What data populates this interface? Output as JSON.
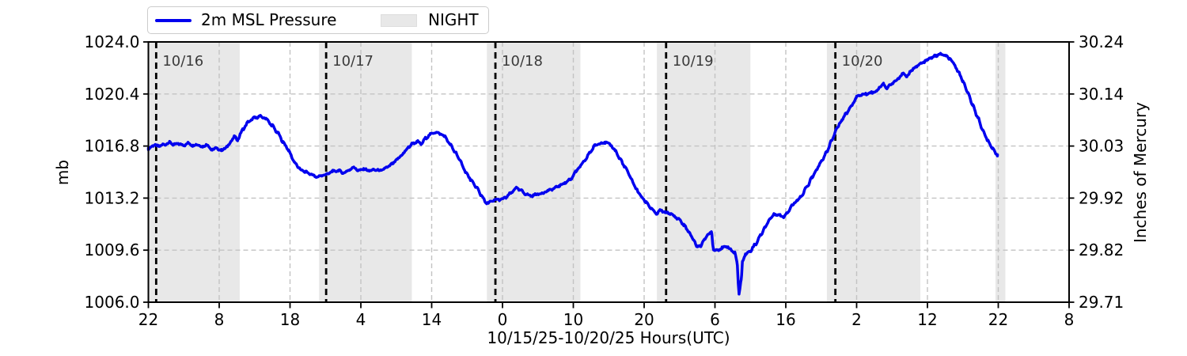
{
  "figure": {
    "bg": "#ffffff"
  },
  "legend": {
    "series_label": "2m MSL Pressure",
    "night_label": "NIGHT"
  },
  "style": {
    "line_color": "#0000ee",
    "night_color": "#e8e8e8",
    "grid_color": "#c3c3c3",
    "spine_color": "#000000",
    "day_line_color": "#000000",
    "day_label_color": "#3a3a3a",
    "text_color": "#000000",
    "legend_border": "#cccccc"
  },
  "chart_data": {
    "type": "line",
    "title": "",
    "xlabel": "10/15/25-10/20/25  Hours(UTC)",
    "ylabel_left": "mb",
    "ylabel_right": "Inches of Mercury",
    "x_unit_note": "hours after 10/15/25 22:00 UTC",
    "xlim": [
      0,
      130
    ],
    "ylim_mb": [
      1006.0,
      1024.0
    ],
    "ylim_inhg": [
      29.71,
      30.24
    ],
    "grid": true,
    "legend_position": "top-left",
    "x_ticks": [
      {
        "t": 0,
        "label": "22"
      },
      {
        "t": 10,
        "label": "8"
      },
      {
        "t": 20,
        "label": "18"
      },
      {
        "t": 30,
        "label": "4"
      },
      {
        "t": 40,
        "label": "14"
      },
      {
        "t": 50,
        "label": "0"
      },
      {
        "t": 60,
        "label": "10"
      },
      {
        "t": 70,
        "label": "20"
      },
      {
        "t": 80,
        "label": "6"
      },
      {
        "t": 90,
        "label": "16"
      },
      {
        "t": 100,
        "label": "2"
      },
      {
        "t": 110,
        "label": "12"
      },
      {
        "t": 120,
        "label": "22"
      },
      {
        "t": 130,
        "label": "8"
      }
    ],
    "y_ticks": [
      {
        "mb": 1006.0,
        "label_mb": "1006.0",
        "label_inhg": "29.71"
      },
      {
        "mb": 1009.6,
        "label_mb": "1009.6",
        "label_inhg": "29.82"
      },
      {
        "mb": 1013.2,
        "label_mb": "1013.2",
        "label_inhg": "29.92"
      },
      {
        "mb": 1016.8,
        "label_mb": "1016.8",
        "label_inhg": "30.03"
      },
      {
        "mb": 1020.4,
        "label_mb": "1020.4",
        "label_inhg": "30.14"
      },
      {
        "mb": 1024.0,
        "label_mb": "1024.0",
        "label_inhg": "30.24"
      }
    ],
    "day_lines": [
      {
        "t": 1.1,
        "label": "10/16"
      },
      {
        "t": 25.1,
        "label": "10/17"
      },
      {
        "t": 49.0,
        "label": "10/18"
      },
      {
        "t": 73.1,
        "label": "10/19"
      },
      {
        "t": 97.0,
        "label": "10/20"
      }
    ],
    "night_spans": [
      [
        0,
        12.9
      ],
      [
        24.1,
        37.2
      ],
      [
        47.8,
        61.0
      ],
      [
        71.8,
        85.0
      ],
      [
        95.8,
        109.0
      ],
      [
        119.6,
        121.0
      ]
    ],
    "series": [
      {
        "name": "2m MSL Pressure",
        "color": "#0000ee",
        "points": [
          [
            0,
            1016.6
          ],
          [
            0.7,
            1016.85
          ],
          [
            1.5,
            1016.8
          ],
          [
            2.2,
            1016.9
          ],
          [
            3,
            1017.05
          ],
          [
            3.6,
            1016.9
          ],
          [
            4.3,
            1016.95
          ],
          [
            5,
            1016.85
          ],
          [
            5.6,
            1017
          ],
          [
            6.3,
            1016.85
          ],
          [
            7,
            1016.9
          ],
          [
            7.6,
            1016.75
          ],
          [
            8.2,
            1016.9
          ],
          [
            9,
            1016.55
          ],
          [
            9.6,
            1016.65
          ],
          [
            10.3,
            1016.5
          ],
          [
            11,
            1016.7
          ],
          [
            11.8,
            1017.2
          ],
          [
            12.2,
            1017.45
          ],
          [
            12.6,
            1017.25
          ],
          [
            13.4,
            1018
          ],
          [
            14.2,
            1018.5
          ],
          [
            15,
            1018.75
          ],
          [
            15.8,
            1018.85
          ],
          [
            16.6,
            1018.7
          ],
          [
            17.4,
            1018.25
          ],
          [
            18.2,
            1017.75
          ],
          [
            19,
            1017.1
          ],
          [
            19.8,
            1016.5
          ],
          [
            20.6,
            1015.7
          ],
          [
            21.4,
            1015.2
          ],
          [
            22.2,
            1015
          ],
          [
            23,
            1014.85
          ],
          [
            23.7,
            1014.65
          ],
          [
            24.4,
            1014.75
          ],
          [
            25.2,
            1014.85
          ],
          [
            26,
            1015.05
          ],
          [
            26.8,
            1015.1
          ],
          [
            27.6,
            1014.95
          ],
          [
            28.4,
            1015.15
          ],
          [
            29,
            1015.35
          ],
          [
            29.6,
            1015.1
          ],
          [
            30.4,
            1015.2
          ],
          [
            31.2,
            1015.1
          ],
          [
            32,
            1015.15
          ],
          [
            32.8,
            1015.1
          ],
          [
            33.6,
            1015.3
          ],
          [
            34.4,
            1015.55
          ],
          [
            35.2,
            1015.9
          ],
          [
            36,
            1016.3
          ],
          [
            36.8,
            1016.75
          ],
          [
            37.4,
            1017
          ],
          [
            38,
            1017.1
          ],
          [
            38.5,
            1016.95
          ],
          [
            39.2,
            1017.35
          ],
          [
            39.8,
            1017.6
          ],
          [
            40.4,
            1017.75
          ],
          [
            41.2,
            1017.65
          ],
          [
            41.9,
            1017.45
          ],
          [
            42.6,
            1016.9
          ],
          [
            43.3,
            1016.4
          ],
          [
            44,
            1015.8
          ],
          [
            44.8,
            1015
          ],
          [
            45.6,
            1014.4
          ],
          [
            46.4,
            1013.9
          ],
          [
            47,
            1013.4
          ],
          [
            47.7,
            1012.85
          ],
          [
            48.4,
            1012.95
          ],
          [
            49.1,
            1013.1
          ],
          [
            49.8,
            1013.1
          ],
          [
            50.5,
            1013.25
          ],
          [
            51.2,
            1013.55
          ],
          [
            51.9,
            1013.9
          ],
          [
            52.5,
            1013.75
          ],
          [
            53.2,
            1013.5
          ],
          [
            54,
            1013.35
          ],
          [
            54.8,
            1013.45
          ],
          [
            55.6,
            1013.55
          ],
          [
            56.4,
            1013.7
          ],
          [
            57.2,
            1013.85
          ],
          [
            58,
            1014.05
          ],
          [
            58.8,
            1014.25
          ],
          [
            59.6,
            1014.5
          ],
          [
            60.3,
            1015
          ],
          [
            61,
            1015.4
          ],
          [
            61.7,
            1015.85
          ],
          [
            62.4,
            1016.4
          ],
          [
            63.1,
            1016.85
          ],
          [
            63.8,
            1017
          ],
          [
            64.5,
            1017.05
          ],
          [
            65.2,
            1016.9
          ],
          [
            65.9,
            1016.5
          ],
          [
            66.6,
            1015.9
          ],
          [
            67.3,
            1015.35
          ],
          [
            68,
            1014.7
          ],
          [
            68.8,
            1013.9
          ],
          [
            69.6,
            1013.3
          ],
          [
            70.3,
            1012.9
          ],
          [
            71,
            1012.5
          ],
          [
            71.7,
            1012.1
          ],
          [
            72.3,
            1012.35
          ],
          [
            73,
            1012.2
          ],
          [
            73.6,
            1012.15
          ],
          [
            74.2,
            1011.95
          ],
          [
            74.9,
            1011.75
          ],
          [
            75.6,
            1011.35
          ],
          [
            76.3,
            1010.85
          ],
          [
            77,
            1010.3
          ],
          [
            77.5,
            1009.85
          ],
          [
            78,
            1009.9
          ],
          [
            78.5,
            1010.35
          ],
          [
            79.1,
            1010.7
          ],
          [
            79.5,
            1010.85
          ],
          [
            79.8,
            1009.65
          ],
          [
            80.3,
            1009.6
          ],
          [
            81,
            1009.75
          ],
          [
            81.7,
            1009.85
          ],
          [
            82.3,
            1009.6
          ],
          [
            82.8,
            1009.4
          ],
          [
            83.1,
            1008.8
          ],
          [
            83.4,
            1006.6
          ],
          [
            83.7,
            1007.5
          ],
          [
            83.9,
            1008.9
          ],
          [
            84.3,
            1009.3
          ],
          [
            85,
            1009.55
          ],
          [
            85.7,
            1010
          ],
          [
            86.4,
            1010.6
          ],
          [
            87.1,
            1011.2
          ],
          [
            87.8,
            1011.8
          ],
          [
            88.5,
            1012.1
          ],
          [
            89.2,
            1012
          ],
          [
            89.7,
            1011.9
          ],
          [
            90.2,
            1012.2
          ],
          [
            90.9,
            1012.7
          ],
          [
            91.6,
            1013.05
          ],
          [
            92.3,
            1013.4
          ],
          [
            93,
            1014
          ],
          [
            93.7,
            1014.6
          ],
          [
            94.4,
            1015.2
          ],
          [
            95.1,
            1015.8
          ],
          [
            95.8,
            1016.4
          ],
          [
            96.5,
            1017.2
          ],
          [
            97.2,
            1018
          ],
          [
            97.9,
            1018.6
          ],
          [
            98.6,
            1019.1
          ],
          [
            99.3,
            1019.6
          ],
          [
            100,
            1020.2
          ],
          [
            100.7,
            1020.35
          ],
          [
            101.4,
            1020.4
          ],
          [
            102.1,
            1020.5
          ],
          [
            102.8,
            1020.6
          ],
          [
            103.4,
            1020.95
          ],
          [
            103.8,
            1021.1
          ],
          [
            104.2,
            1020.8
          ],
          [
            104.8,
            1021.05
          ],
          [
            105.4,
            1021.25
          ],
          [
            106,
            1021.5
          ],
          [
            106.6,
            1021.85
          ],
          [
            107.1,
            1021.6
          ],
          [
            107.7,
            1022
          ],
          [
            108.4,
            1022.3
          ],
          [
            109.1,
            1022.5
          ],
          [
            109.8,
            1022.7
          ],
          [
            110.5,
            1022.9
          ],
          [
            111.2,
            1023.05
          ],
          [
            111.9,
            1023.15
          ],
          [
            112.5,
            1023.05
          ],
          [
            113.1,
            1022.85
          ],
          [
            113.7,
            1022.5
          ],
          [
            114.3,
            1022
          ],
          [
            115,
            1021.3
          ],
          [
            115.7,
            1020.5
          ],
          [
            116.4,
            1019.6
          ],
          [
            117.1,
            1018.8
          ],
          [
            117.8,
            1017.9
          ],
          [
            118.5,
            1017.2
          ],
          [
            119.2,
            1016.6
          ],
          [
            119.9,
            1016.15
          ]
        ]
      }
    ]
  }
}
